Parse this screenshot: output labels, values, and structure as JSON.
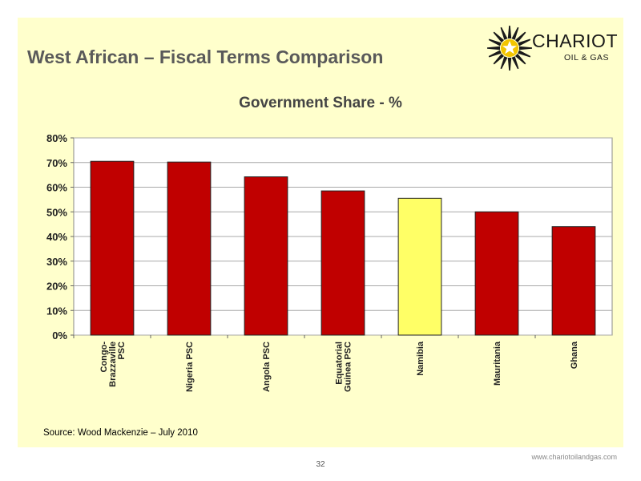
{
  "slide": {
    "title": "West African – Fiscal Terms Comparison",
    "source": "Source: Wood Mackenzie – July 2010",
    "page_number": "32",
    "website": "www.chariotoilandgas.com",
    "background_color": "#ffffcc"
  },
  "logo": {
    "name": "CHARIOT",
    "subtitle": "OIL & GAS",
    "icon": "sunburst-star-logo-icon"
  },
  "chart_data": {
    "type": "bar",
    "title": "Government Share - %",
    "categories": [
      [
        "Congo-",
        "Brazzaville",
        "PSC"
      ],
      [
        "Nigeria PSC"
      ],
      [
        "Angola PSC"
      ],
      [
        "Equatorial",
        "Guinea PSC"
      ],
      [
        "Namibia"
      ],
      [
        "Mauritania"
      ],
      [
        "Ghana"
      ]
    ],
    "values": [
      70.5,
      70.2,
      64.2,
      58.5,
      55.5,
      50.0,
      44.0
    ],
    "highlight_index": 4,
    "bar_color": "#c00000",
    "highlight_color": "#ffff66",
    "ylim": [
      0,
      80
    ],
    "yticks": [
      0,
      10,
      20,
      30,
      40,
      50,
      60,
      70,
      80
    ],
    "ytick_labels": [
      "0%",
      "10%",
      "20%",
      "30%",
      "40%",
      "50%",
      "60%",
      "70%",
      "80%"
    ],
    "grid": true,
    "legend": "none"
  }
}
